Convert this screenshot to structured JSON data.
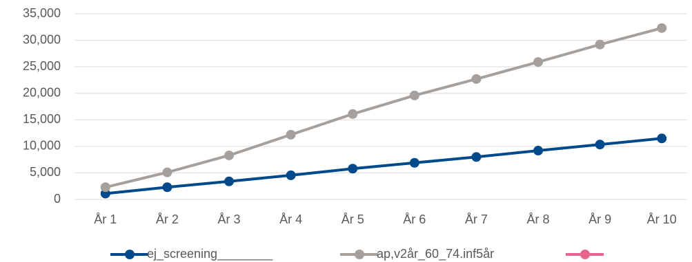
{
  "chart_data": {
    "type": "line",
    "categories": [
      "År 1",
      "År 2",
      "År 3",
      "År 4",
      "År 5",
      "År 6",
      "År 7",
      "År 8",
      "År 9",
      "År 10"
    ],
    "series": [
      {
        "name": "ej_screening________",
        "color": "#004a8c",
        "values": [
          1100,
          2300,
          3400,
          4550,
          5800,
          6900,
          8000,
          9200,
          10350,
          11500
        ]
      },
      {
        "name": "ap,v2år_60_74.inf5år",
        "color": "#a5a09b",
        "values": [
          2300,
          5100,
          8300,
          12200,
          16100,
          19600,
          22700,
          25900,
          29200,
          32300
        ]
      },
      {
        "name": null,
        "color": "#e8648c",
        "values": [
          null,
          null,
          null,
          null,
          null,
          null,
          null,
          null,
          null,
          null
        ]
      }
    ],
    "ylim": [
      0,
      35000
    ],
    "yticks": [
      0,
      {
        "value": 5000,
        "label": "5,000"
      },
      {
        "value": 10000,
        "label": "10,000"
      },
      {
        "value": 15000,
        "label": "15,000"
      },
      {
        "value": 20000,
        "label": "20,000"
      },
      {
        "value": 25000,
        "label": "25,000"
      },
      {
        "value": 30000,
        "label": "30,000"
      },
      {
        "value": 35000,
        "label": "35,000"
      }
    ],
    "grid": true,
    "legend": "bottom"
  }
}
